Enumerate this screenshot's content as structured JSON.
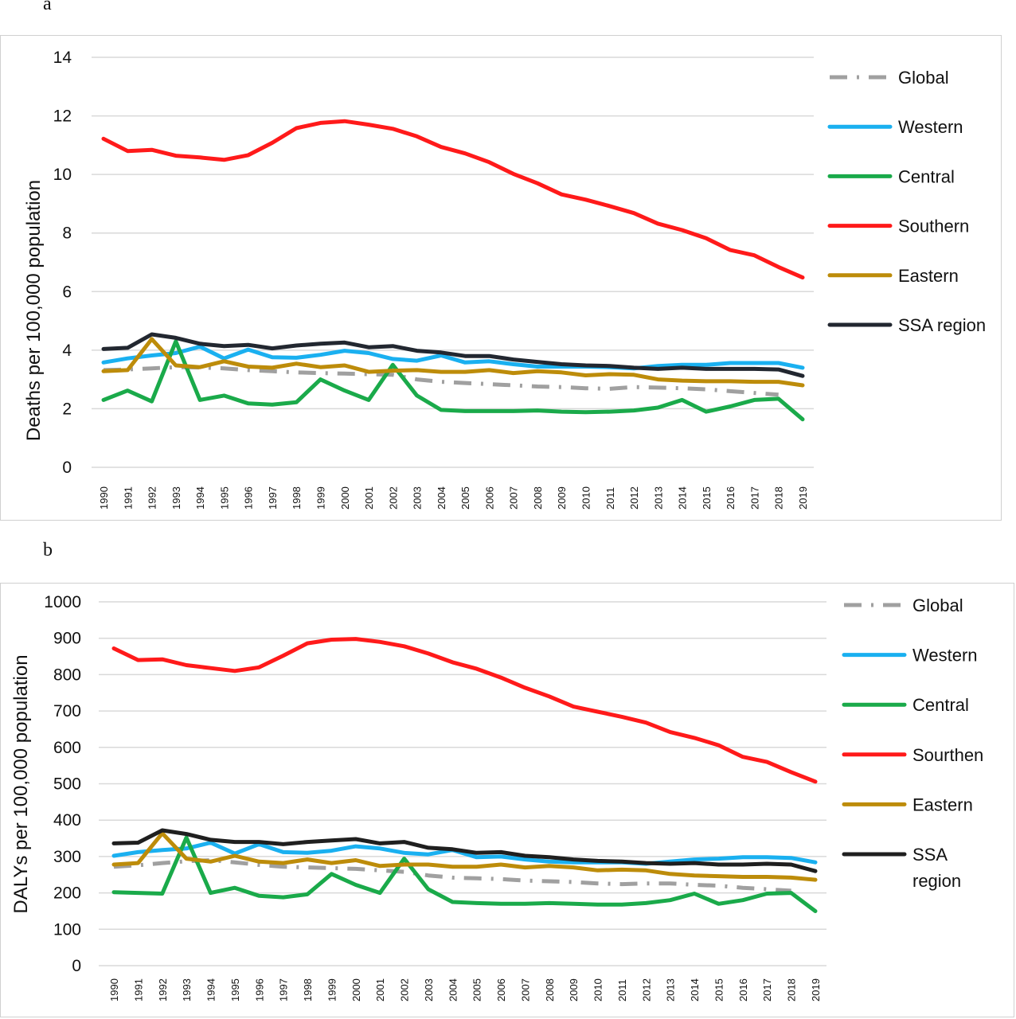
{
  "chart_data": [
    {
      "type": "line",
      "panel_label": "a",
      "title": "",
      "xlabel": "",
      "ylabel": "Deaths per 100,000 population",
      "ylim": [
        0,
        14
      ],
      "yticks": [
        0,
        2,
        4,
        6,
        8,
        10,
        12,
        14
      ],
      "grid": true,
      "legend_position": "right",
      "x": [
        "1990",
        "1991",
        "1992",
        "1993",
        "1994",
        "1995",
        "1996",
        "1997",
        "1998",
        "1999",
        "2000",
        "2001",
        "2002",
        "2003",
        "2004",
        "2005",
        "2006",
        "2007",
        "2008",
        "2009",
        "2010",
        "2011",
        "2012",
        "2013",
        "2014",
        "2015",
        "2016",
        "2017",
        "2018",
        "2019"
      ],
      "series": [
        {
          "name": "Global",
          "color": "#a0a0a0",
          "dash": "dashdot",
          "values": [
            3.32,
            3.34,
            3.38,
            3.42,
            3.41,
            3.38,
            3.32,
            3.28,
            3.24,
            3.22,
            3.2,
            3.18,
            3.16,
            3.0,
            2.92,
            2.88,
            2.84,
            2.8,
            2.76,
            2.74,
            2.7,
            2.68,
            2.74,
            2.72,
            2.7,
            2.66,
            2.6,
            2.54,
            2.48,
            null
          ]
        },
        {
          "name": "Western",
          "color": "#1ab0f0",
          "values": [
            3.58,
            3.72,
            3.82,
            3.9,
            4.12,
            3.72,
            4.02,
            3.76,
            3.74,
            3.84,
            3.98,
            3.9,
            3.7,
            3.64,
            3.82,
            3.58,
            3.62,
            3.52,
            3.44,
            3.44,
            3.44,
            3.42,
            3.38,
            3.46,
            3.5,
            3.5,
            3.56,
            3.56,
            3.56,
            3.4
          ]
        },
        {
          "name": "Central",
          "color": "#1aaa4a",
          "values": [
            2.3,
            2.62,
            2.25,
            4.3,
            2.3,
            2.45,
            2.18,
            2.14,
            2.22,
            3.0,
            2.62,
            2.3,
            3.5,
            2.45,
            1.96,
            1.92,
            1.92,
            1.92,
            1.94,
            1.9,
            1.88,
            1.9,
            1.94,
            2.04,
            2.3,
            1.9,
            2.08,
            2.3,
            2.34,
            1.64
          ]
        },
        {
          "name": "Southern",
          "color": "#ff1a1a",
          "values": [
            11.22,
            10.8,
            10.84,
            10.64,
            10.58,
            10.5,
            10.66,
            11.08,
            11.58,
            11.76,
            11.82,
            11.7,
            11.56,
            11.3,
            10.94,
            10.72,
            10.42,
            10.02,
            9.7,
            9.32,
            9.14,
            8.92,
            8.68,
            8.32,
            8.1,
            7.82,
            7.42,
            7.24,
            6.84,
            6.48
          ]
        },
        {
          "name": "Eastern",
          "color": "#bd8c0a",
          "values": [
            3.28,
            3.32,
            4.38,
            3.48,
            3.42,
            3.62,
            3.44,
            3.4,
            3.54,
            3.42,
            3.48,
            3.26,
            3.3,
            3.32,
            3.26,
            3.26,
            3.32,
            3.22,
            3.28,
            3.24,
            3.14,
            3.18,
            3.16,
            3.0,
            2.96,
            2.94,
            2.94,
            2.92,
            2.92,
            2.8
          ]
        },
        {
          "name": "SSA region",
          "color": "#222730",
          "values": [
            4.04,
            4.08,
            4.54,
            4.42,
            4.22,
            4.14,
            4.18,
            4.06,
            4.16,
            4.22,
            4.26,
            4.1,
            4.14,
            3.98,
            3.92,
            3.8,
            3.8,
            3.68,
            3.6,
            3.52,
            3.48,
            3.46,
            3.4,
            3.36,
            3.4,
            3.36,
            3.36,
            3.36,
            3.34,
            3.12
          ]
        }
      ]
    },
    {
      "type": "line",
      "panel_label": "b",
      "title": "",
      "xlabel": "",
      "ylabel": "DALYs per 100,000 population",
      "ylim": [
        0,
        1000
      ],
      "yticks": [
        0,
        100,
        200,
        300,
        400,
        500,
        600,
        700,
        800,
        900,
        1000
      ],
      "grid": true,
      "legend_position": "right",
      "x": [
        "1990",
        "1991",
        "1992",
        "1993",
        "1994",
        "1995",
        "1996",
        "1997",
        "1998",
        "1999",
        "2000",
        "2001",
        "2002",
        "2003",
        "2004",
        "2005",
        "2006",
        "2007",
        "2008",
        "2009",
        "2010",
        "2011",
        "2012",
        "2013",
        "2014",
        "2015",
        "2016",
        "2017",
        "2018",
        "2019"
      ],
      "series": [
        {
          "name": "Global",
          "color": "#a0a0a0",
          "dash": "dashdot",
          "values": [
            272,
            276,
            282,
            287,
            290,
            284,
            277,
            272,
            270,
            268,
            266,
            262,
            258,
            248,
            242,
            240,
            238,
            234,
            232,
            230,
            226,
            224,
            226,
            226,
            222,
            220,
            214,
            210,
            206,
            null
          ]
        },
        {
          "name": "Western",
          "color": "#1ab0f0",
          "values": [
            302,
            312,
            318,
            322,
            338,
            308,
            334,
            312,
            310,
            316,
            328,
            322,
            310,
            306,
            318,
            298,
            300,
            292,
            286,
            284,
            284,
            284,
            280,
            286,
            292,
            294,
            298,
            298,
            296,
            284
          ]
        },
        {
          "name": "Central",
          "color": "#1aaa4a",
          "values": [
            202,
            200,
            198,
            352,
            200,
            214,
            192,
            188,
            196,
            252,
            222,
            200,
            294,
            210,
            175,
            172,
            170,
            170,
            172,
            170,
            168,
            168,
            172,
            180,
            198,
            170,
            180,
            198,
            200,
            150
          ]
        },
        {
          "name": "Sourthen",
          "color": "#ff1a1a",
          "values": [
            872,
            840,
            842,
            826,
            818,
            810,
            820,
            852,
            886,
            896,
            898,
            890,
            878,
            858,
            834,
            816,
            792,
            764,
            740,
            712,
            698,
            684,
            668,
            642,
            626,
            606,
            574,
            560,
            532,
            506
          ]
        },
        {
          "name": "Eastern",
          "color": "#bd8c0a",
          "values": [
            278,
            282,
            364,
            294,
            286,
            302,
            286,
            282,
            292,
            282,
            290,
            274,
            278,
            278,
            272,
            272,
            278,
            270,
            274,
            270,
            262,
            264,
            262,
            252,
            248,
            246,
            244,
            244,
            242,
            236
          ]
        },
        {
          "name": "SSA\nregion",
          "color": "#1f1f1f",
          "values": [
            336,
            338,
            372,
            362,
            346,
            340,
            340,
            334,
            340,
            344,
            348,
            336,
            340,
            324,
            320,
            310,
            312,
            302,
            298,
            292,
            288,
            286,
            282,
            280,
            282,
            278,
            278,
            280,
            278,
            260
          ]
        }
      ]
    }
  ]
}
